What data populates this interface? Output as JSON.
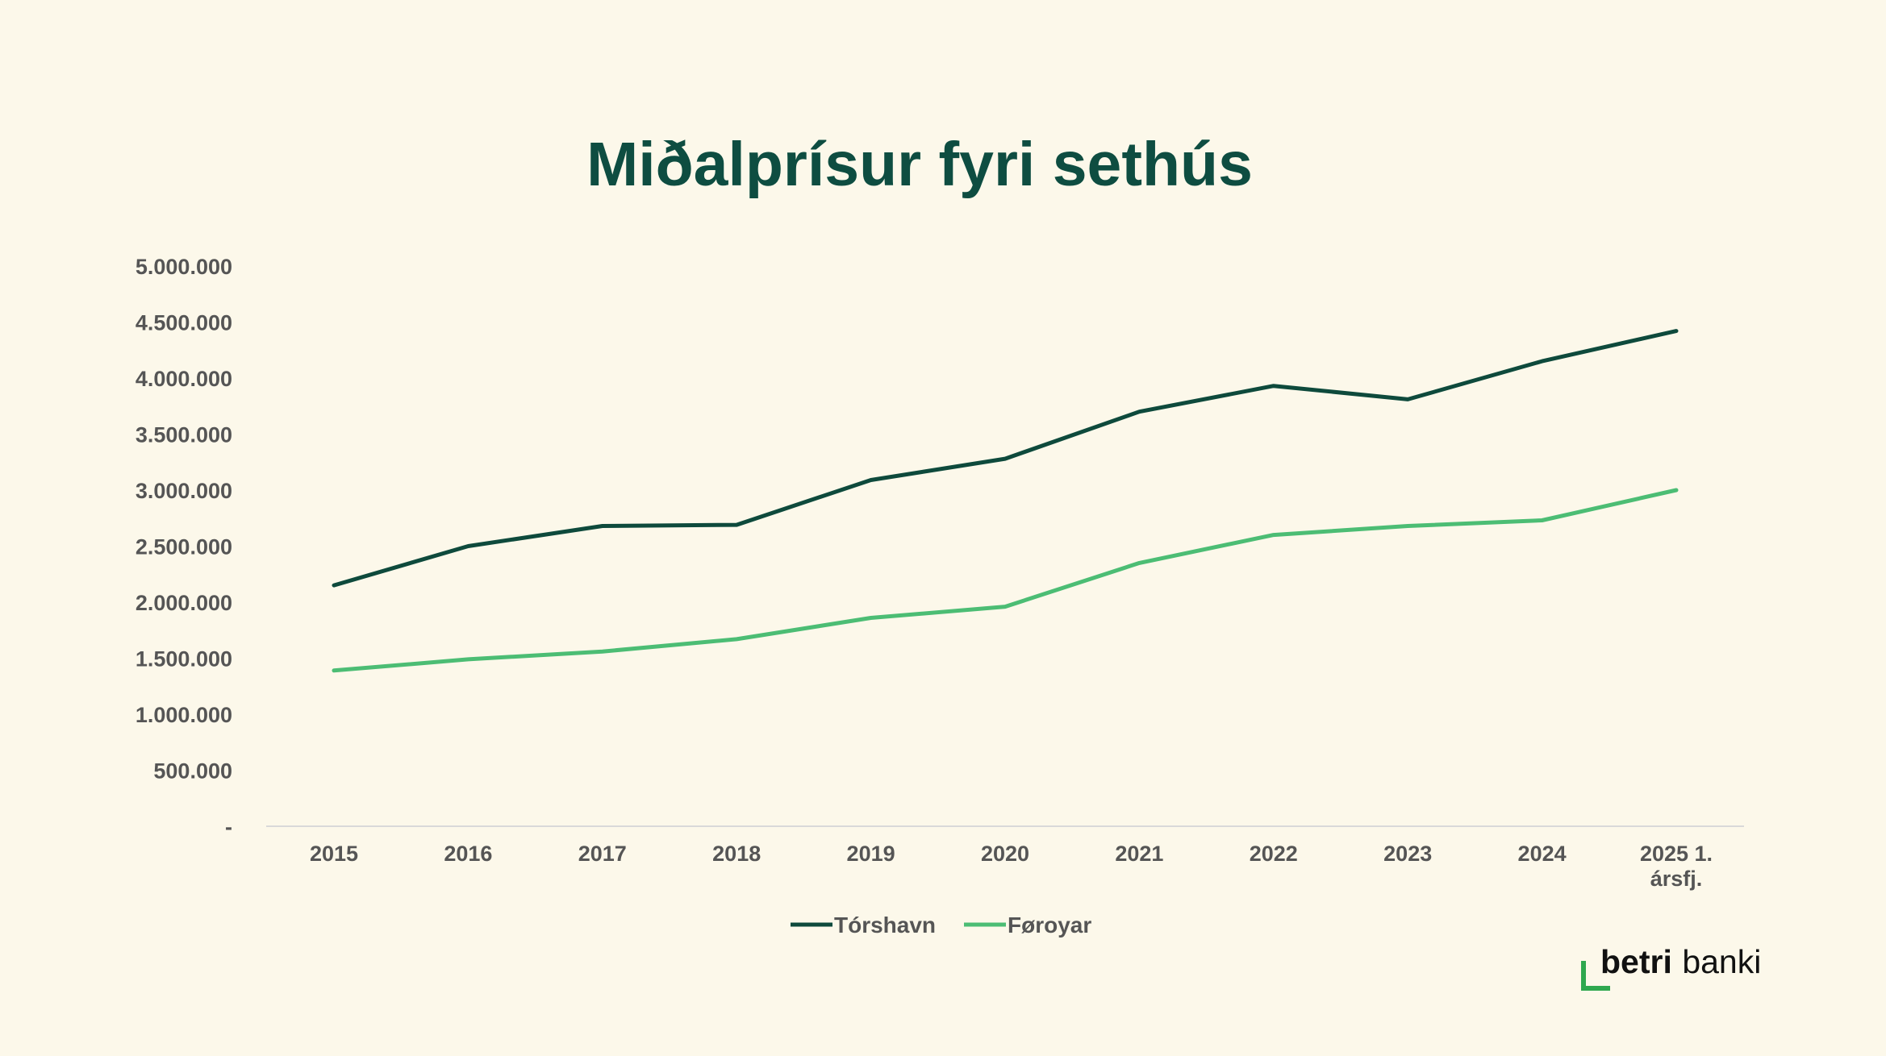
{
  "colors": {
    "background": "#fcf8ea",
    "title": "#0e4d41",
    "axis_text": "#555555",
    "baseline": "#d9d9d9",
    "logo_accent": "#2fa84f"
  },
  "chart_data": {
    "type": "line",
    "title": "Miðalprísur fyri sethús",
    "xlabel": "",
    "ylabel": "",
    "categories": [
      "2015",
      "2016",
      "2017",
      "2018",
      "2019",
      "2020",
      "2021",
      "2022",
      "2023",
      "2024",
      "2025 1. ársfj."
    ],
    "category_lines": [
      [
        "2015"
      ],
      [
        "2016"
      ],
      [
        "2017"
      ],
      [
        "2018"
      ],
      [
        "2019"
      ],
      [
        "2020"
      ],
      [
        "2021"
      ],
      [
        "2022"
      ],
      [
        "2023"
      ],
      [
        "2024"
      ],
      [
        "2025 1.",
        "ársfj."
      ]
    ],
    "ylim": [
      0,
      5000000
    ],
    "yticks": [
      0,
      500000,
      1000000,
      1500000,
      2000000,
      2500000,
      3000000,
      3500000,
      4000000,
      4500000,
      5000000
    ],
    "ytick_labels": [
      "-",
      "500.000",
      "1.000.000",
      "1.500.000",
      "2.000.000",
      "2.500.000",
      "3.000.000",
      "3.500.000",
      "4.000.000",
      "4.500.000",
      "5.000.000"
    ],
    "grid": false,
    "legend_position": "bottom",
    "series": [
      {
        "name": "Tórshavn",
        "color": "#0e4a3c",
        "values": [
          2150000,
          2500000,
          2680000,
          2690000,
          3090000,
          3280000,
          3700000,
          3930000,
          3810000,
          4150000,
          4420000
        ]
      },
      {
        "name": "Føroyar",
        "color": "#4cbd74",
        "values": [
          1390000,
          1490000,
          1560000,
          1670000,
          1860000,
          1960000,
          2350000,
          2600000,
          2680000,
          2730000,
          3000000
        ]
      }
    ]
  },
  "logo": {
    "word_bold": "betri",
    "word_regular": "banki"
  }
}
